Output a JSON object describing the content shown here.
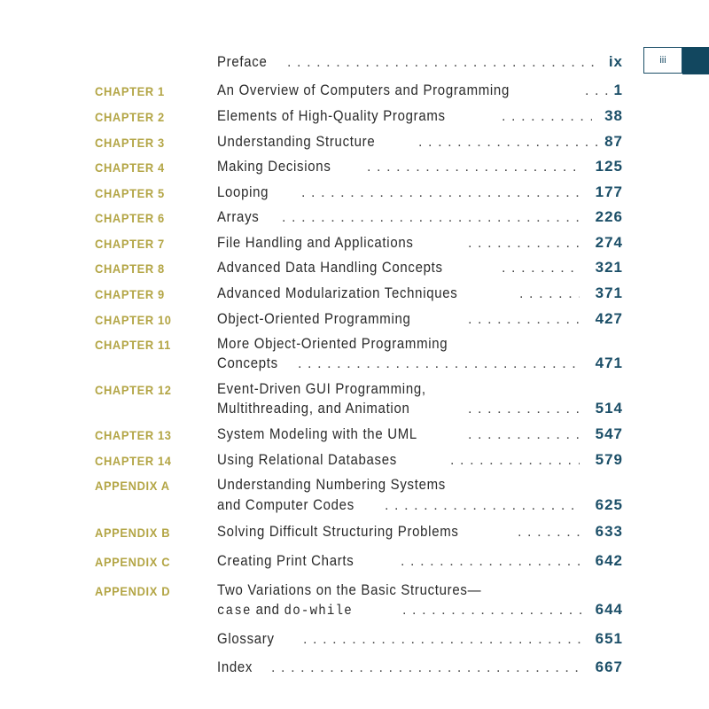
{
  "page_number_tab": "iii",
  "entries": [
    {
      "label": "",
      "title": "Preface",
      "page": "ix"
    },
    {
      "label": "CHAPTER 1",
      "title": "An Overview of Computers and Programming",
      "page": "1"
    },
    {
      "label": "CHAPTER 2",
      "title": "Elements of High-Quality Programs",
      "page": "38"
    },
    {
      "label": "CHAPTER 3",
      "title": "Understanding Structure",
      "page": "87"
    },
    {
      "label": "CHAPTER 4",
      "title": "Making Decisions",
      "page": "125"
    },
    {
      "label": "CHAPTER 5",
      "title": "Looping",
      "page": "177"
    },
    {
      "label": "CHAPTER 6",
      "title": "Arrays",
      "page": "226"
    },
    {
      "label": "CHAPTER 7",
      "title": "File Handling and Applications",
      "page": "274"
    },
    {
      "label": "CHAPTER 8",
      "title": "Advanced Data Handling Concepts",
      "page": "321"
    },
    {
      "label": "CHAPTER 9",
      "title": "Advanced Modularization Techniques",
      "page": "371"
    },
    {
      "label": "CHAPTER 10",
      "title": "Object-Oriented Programming",
      "page": "427"
    },
    {
      "label": "CHAPTER 11",
      "title_line1": "More Object-Oriented Programming",
      "title_line2": "Concepts",
      "page": "471"
    },
    {
      "label": "CHAPTER 12",
      "title_line1": "Event-Driven GUI Programming,",
      "title_line2": "Multithreading, and Animation",
      "page": "514"
    },
    {
      "label": "CHAPTER 13",
      "title": "System Modeling with the UML",
      "page": "547"
    },
    {
      "label": "CHAPTER 14",
      "title": "Using Relational Databases",
      "page": "579"
    },
    {
      "label": "APPENDIX A",
      "title_line1": "Understanding Numbering Systems",
      "title_line2": "and Computer Codes",
      "page": "625"
    },
    {
      "label": "APPENDIX B",
      "title": "Solving Difficult Structuring Problems",
      "page": "633"
    },
    {
      "label": "APPENDIX C",
      "title": "Creating Print Charts",
      "page": "642"
    },
    {
      "label": "APPENDIX D",
      "title_line1": "Two Variations on the Basic Structures—",
      "title_line2_code1": "case",
      "title_line2_mid": " and ",
      "title_line2_code2": "do-while",
      "page": "644"
    },
    {
      "label": "",
      "title": "Glossary",
      "page": "651"
    },
    {
      "label": "",
      "title": "Index",
      "page": "667"
    }
  ]
}
